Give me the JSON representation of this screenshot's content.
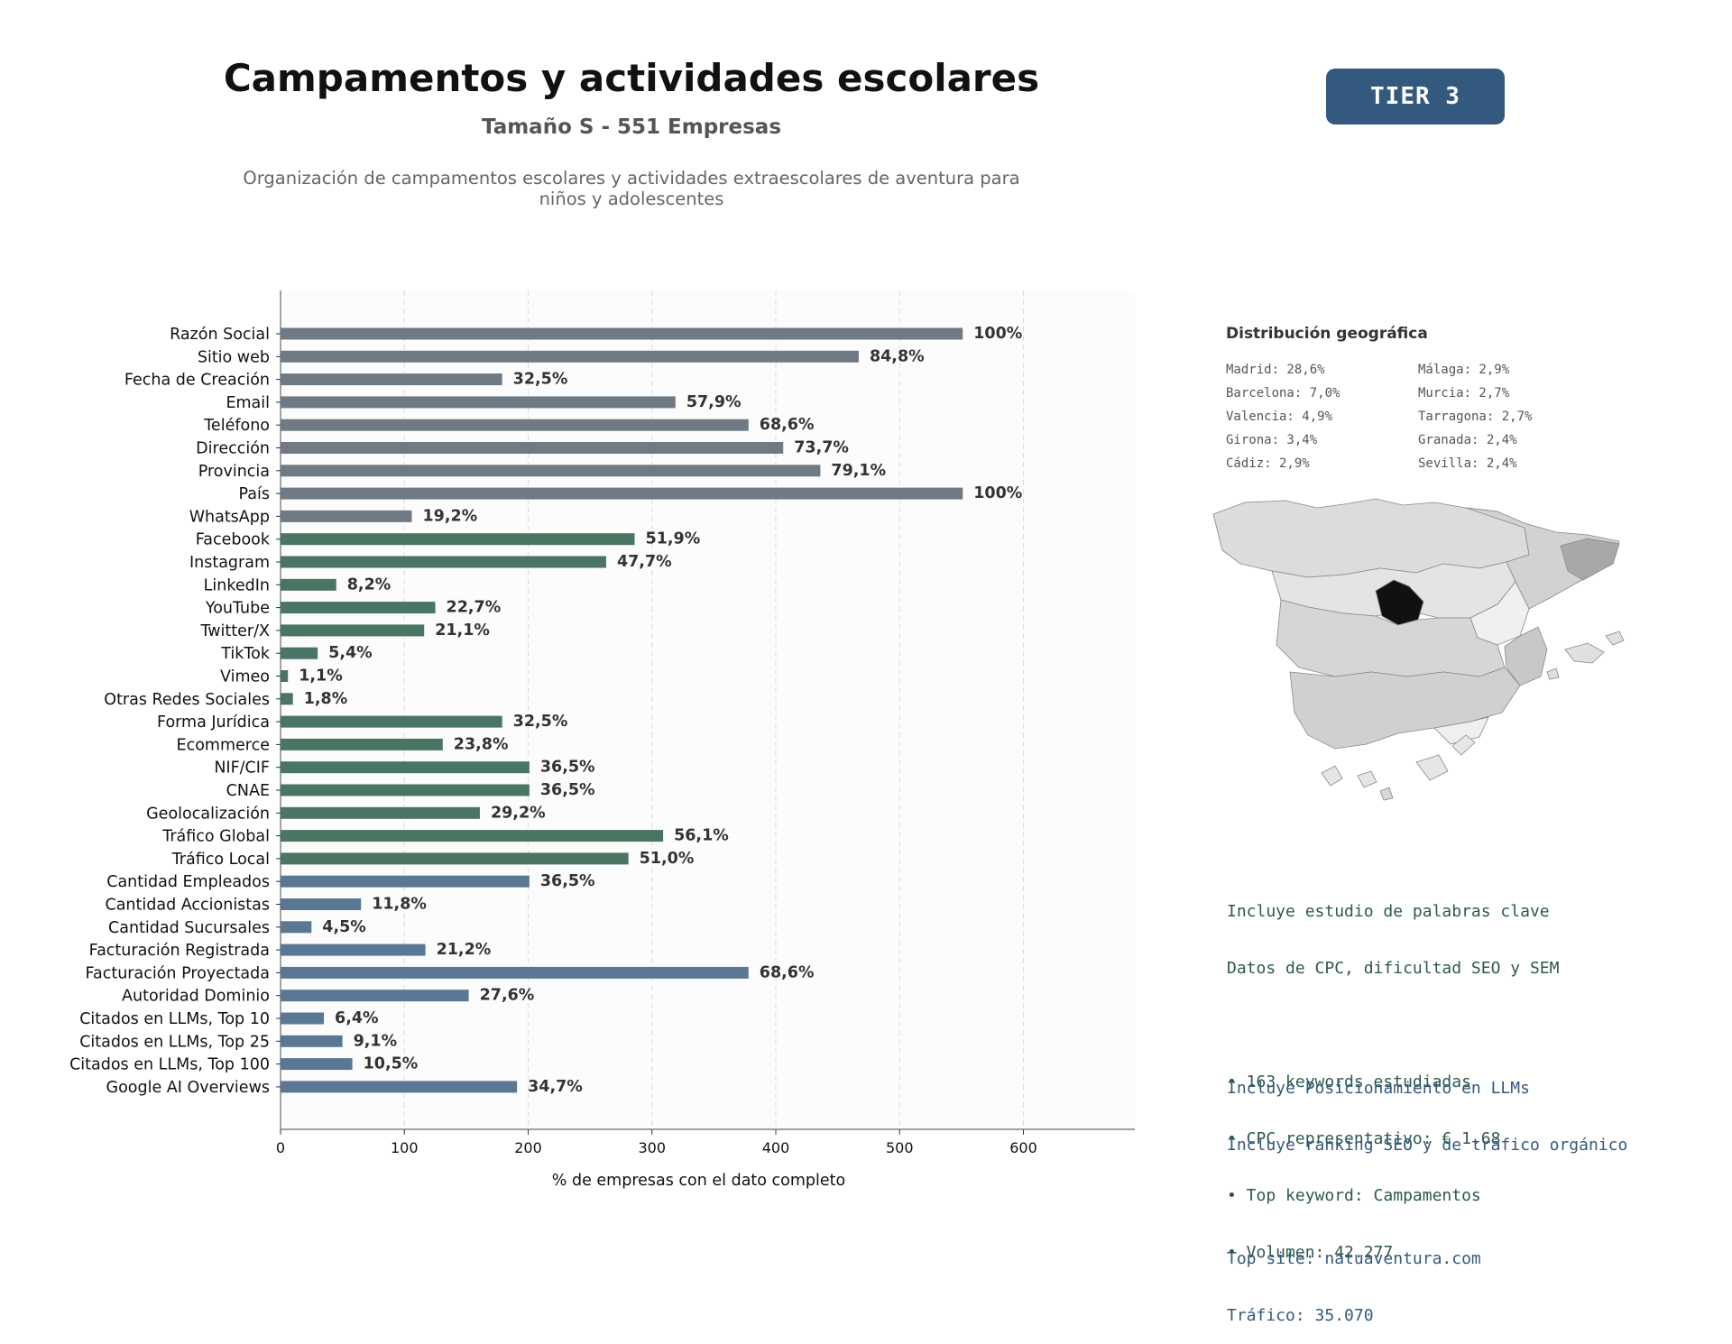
{
  "header": {
    "title": "Campamentos y actividades escolares",
    "subtitle": "Tamaño S - 551 Empresas",
    "description": "Organización de campamentos escolares y actividades extraescolares de aventura para niños y adolescentes",
    "tier_label": "TIER 3"
  },
  "chart_data": {
    "type": "bar",
    "orientation": "horizontal",
    "xlabel": "% de empresas con el dato completo",
    "xlim": [
      0,
      690
    ],
    "xticks": [
      0,
      100,
      200,
      300,
      400,
      500,
      600
    ],
    "grid": true,
    "colors": {
      "basic": "#6f7a85",
      "social": "#4a7563",
      "business": "#5a7894"
    },
    "categories": [
      "Razón Social",
      "Sitio web",
      "Fecha de Creación",
      "Email",
      "Teléfono",
      "Dirección",
      "Provincia",
      "País",
      "WhatsApp",
      "Facebook",
      "Instagram",
      "LinkedIn",
      "YouTube",
      "Twitter/X",
      "TikTok",
      "Vimeo",
      "Otras Redes Sociales",
      "Forma Jurídica",
      "Ecommerce",
      "NIF/CIF",
      "CNAE",
      "Geolocalización",
      "Tráfico Global",
      "Tráfico Local",
      "Cantidad Empleados",
      "Cantidad Accionistas",
      "Cantidad Sucursales",
      "Facturación Registrada",
      "Facturación Proyectada",
      "Autoridad Dominio",
      "Citados en LLMs, Top 10",
      "Citados en LLMs, Top 25",
      "Citados en LLMs, Top 100",
      "Google AI Overviews"
    ],
    "values": [
      551,
      467,
      179,
      319,
      378,
      406,
      436,
      551,
      106,
      286,
      263,
      45,
      125,
      116,
      30,
      6,
      10,
      179,
      131,
      201,
      201,
      161,
      309,
      281,
      201,
      65,
      25,
      117,
      378,
      152,
      35,
      50,
      58,
      191
    ],
    "labels": [
      "100%",
      "84,8%",
      "32,5%",
      "57,9%",
      "68,6%",
      "73,7%",
      "79,1%",
      "100%",
      "19,2%",
      "51,9%",
      "47,7%",
      "8,2%",
      "22,7%",
      "21,1%",
      "5,4%",
      "1,1%",
      "1,8%",
      "32,5%",
      "23,8%",
      "36,5%",
      "36,5%",
      "29,2%",
      "56,1%",
      "51,0%",
      "36,5%",
      "11,8%",
      "4,5%",
      "21,2%",
      "68,6%",
      "27,6%",
      "6,4%",
      "9,1%",
      "10,5%",
      "34,7%"
    ],
    "groups": [
      "basic",
      "basic",
      "basic",
      "basic",
      "basic",
      "basic",
      "basic",
      "basic",
      "basic",
      "social",
      "social",
      "social",
      "social",
      "social",
      "social",
      "social",
      "social",
      "social",
      "social",
      "social",
      "social",
      "social",
      "social",
      "social",
      "business",
      "business",
      "business",
      "business",
      "business",
      "business",
      "business",
      "business",
      "business",
      "business"
    ]
  },
  "geo": {
    "title": "Distribución geográfica",
    "left": [
      "Madrid: 28,6%",
      "Barcelona: 7,0%",
      "Valencia: 4,9%",
      "Girona: 3,4%",
      "Cádiz: 2,9%"
    ],
    "right": [
      "Málaga: 2,9%",
      "Murcia: 2,7%",
      "Tarragona: 2,7%",
      "Granada: 2,4%",
      "Sevilla: 2,4%"
    ]
  },
  "seo": {
    "lines": [
      "Incluye estudio de palabras clave",
      "Datos de CPC, dificultad SEO y SEM",
      "",
      "• 163 keywords estudiadas",
      "• CPC representativo: € 1.68",
      "• Top keyword: Campamentos",
      "• Volumen: 42.277"
    ]
  },
  "llm": {
    "lines": [
      "Incluye Posicionamiento en LLMs",
      "Incluye ranking SEO y de tráfico orgánico",
      "",
      "Top site: natuaventura.com",
      "Tráfico: 35.070"
    ]
  }
}
